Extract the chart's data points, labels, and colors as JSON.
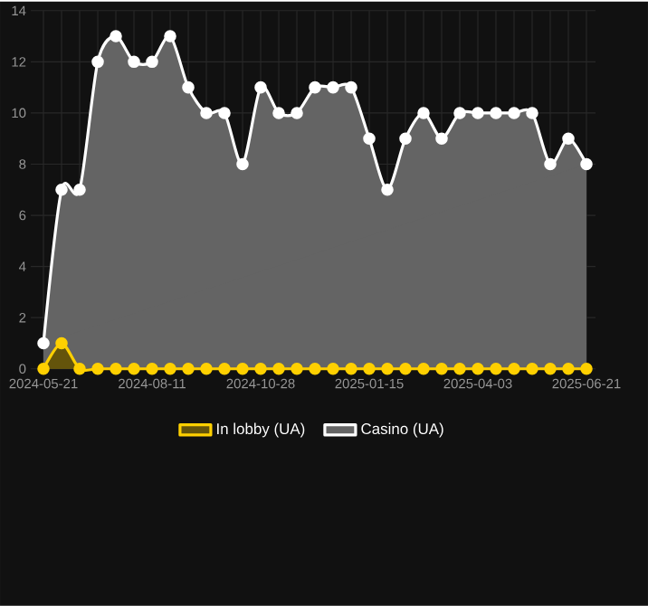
{
  "chart_data": {
    "type": "area",
    "categories": [
      "2024-05-21",
      null,
      null,
      null,
      null,
      null,
      "2024-08-11",
      null,
      null,
      null,
      null,
      null,
      "2024-10-28",
      null,
      null,
      null,
      null,
      null,
      "2025-01-15",
      null,
      null,
      null,
      null,
      null,
      "2025-04-03",
      null,
      null,
      null,
      null,
      null,
      "2025-06-21"
    ],
    "series": [
      {
        "name": "In lobby (UA)",
        "color": "#ffd000",
        "values": [
          0,
          1,
          0,
          0,
          0,
          0,
          0,
          0,
          0,
          0,
          0,
          0,
          0,
          0,
          0,
          0,
          0,
          0,
          0,
          0,
          0,
          0,
          0,
          0,
          0,
          0,
          0,
          0,
          0,
          0,
          0
        ]
      },
      {
        "name": "Casino (UA)",
        "color": "#ffffff",
        "values": [
          1,
          7,
          7,
          12,
          13,
          12,
          12,
          13,
          11,
          10,
          10,
          8,
          11,
          10,
          10,
          11,
          11,
          11,
          9,
          7,
          9,
          10,
          9,
          10,
          10,
          10,
          10,
          10,
          8,
          9,
          8
        ]
      }
    ],
    "ylim": [
      0,
      14
    ],
    "yticks": [
      0,
      2,
      4,
      6,
      8,
      10,
      12,
      14
    ],
    "grid": true,
    "legend": "bottom",
    "marker": "circle"
  }
}
